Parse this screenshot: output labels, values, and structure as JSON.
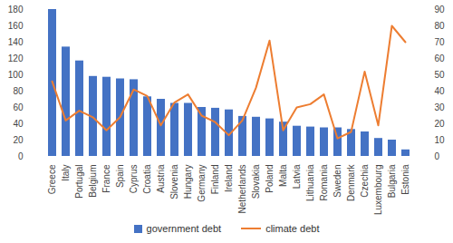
{
  "chart_data": {
    "type": "bar",
    "categories": [
      "Greece",
      "Italy",
      "Portugal",
      "Belgium",
      "France",
      "Spain",
      "Cyprus",
      "Croatia",
      "Austria",
      "Slovenia",
      "Hungary",
      "Germany",
      "Finland",
      "Ireland",
      "Netherlands",
      "Slovakia",
      "Poland",
      "Malta",
      "Latvia",
      "Lithuania",
      "Romania",
      "Sweden",
      "Denmark",
      "Czechia",
      "Luxembourg",
      "Bulgaria",
      "Estonia"
    ],
    "series": [
      {
        "name": "government debt",
        "type": "bar",
        "color": "#4472c4",
        "values": [
          180,
          134,
          117,
          98,
          97,
          95,
          94,
          73,
          70,
          65,
          65,
          60,
          59,
          57,
          49,
          48,
          46,
          42,
          37,
          36,
          35,
          35,
          33,
          30,
          22,
          20,
          8
        ]
      },
      {
        "name": "climate debt",
        "type": "line",
        "axis": "y2",
        "color": "#ed7d31",
        "values": [
          46,
          22,
          28,
          24,
          16,
          24,
          41,
          37,
          19,
          33,
          38,
          25,
          21,
          13,
          22,
          42,
          71,
          16,
          30,
          32,
          38,
          11,
          15,
          52,
          19,
          80,
          70
        ]
      }
    ],
    "ylim": [
      0,
      180
    ],
    "yticks": [
      0,
      20,
      40,
      60,
      80,
      100,
      120,
      140,
      160,
      180
    ],
    "y2lim": [
      0,
      90
    ],
    "y2ticks": [
      0,
      10,
      20,
      30,
      40,
      50,
      60,
      70,
      80,
      90
    ],
    "legend": "bottom"
  }
}
